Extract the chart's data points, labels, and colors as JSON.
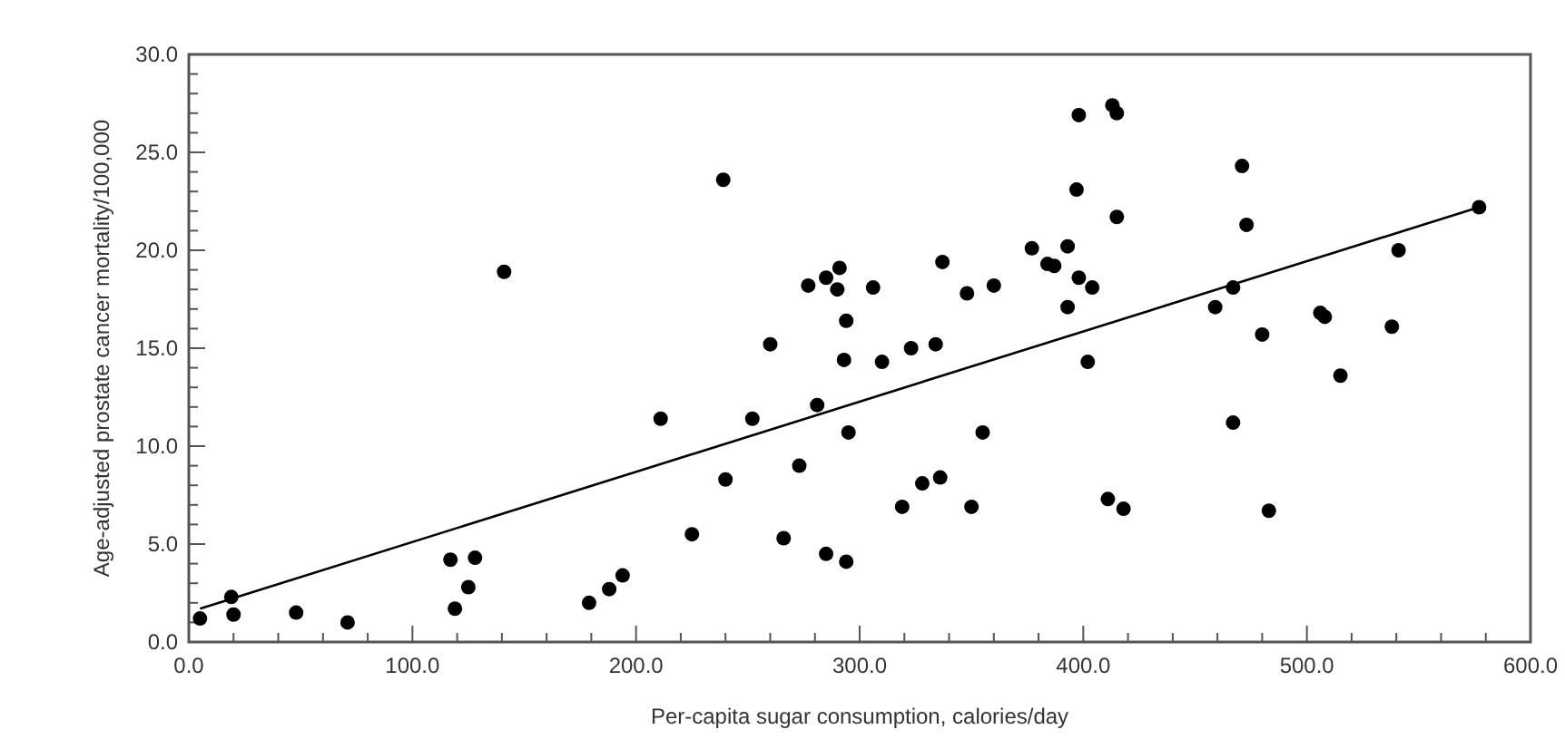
{
  "chart_data": {
    "type": "scatter",
    "xlabel": "Per-capita sugar consumption, calories/day",
    "ylabel": "Age-adjusted prostate cancer mortality/100,000",
    "xlim": [
      0,
      600
    ],
    "ylim": [
      0,
      30
    ],
    "xticks": [
      {
        "value": 0,
        "label": "0.0"
      },
      {
        "value": 20,
        "label": null
      },
      {
        "value": 40,
        "label": null
      },
      {
        "value": 60,
        "label": null
      },
      {
        "value": 80,
        "label": null
      },
      {
        "value": 100,
        "label": "100.0"
      },
      {
        "value": 120,
        "label": null
      },
      {
        "value": 140,
        "label": null
      },
      {
        "value": 160,
        "label": null
      },
      {
        "value": 180,
        "label": null
      },
      {
        "value": 200,
        "label": "200.0"
      },
      {
        "value": 220,
        "label": null
      },
      {
        "value": 240,
        "label": null
      },
      {
        "value": 260,
        "label": null
      },
      {
        "value": 280,
        "label": null
      },
      {
        "value": 300,
        "label": "300.0"
      },
      {
        "value": 320,
        "label": null
      },
      {
        "value": 340,
        "label": null
      },
      {
        "value": 360,
        "label": null
      },
      {
        "value": 380,
        "label": null
      },
      {
        "value": 400,
        "label": "400.0"
      },
      {
        "value": 420,
        "label": null
      },
      {
        "value": 440,
        "label": null
      },
      {
        "value": 460,
        "label": null
      },
      {
        "value": 480,
        "label": null
      },
      {
        "value": 500,
        "label": "500.0"
      },
      {
        "value": 520,
        "label": null
      },
      {
        "value": 540,
        "label": null
      },
      {
        "value": 560,
        "label": null
      },
      {
        "value": 580,
        "label": null
      },
      {
        "value": 600,
        "label": "600.0"
      }
    ],
    "yticks": [
      {
        "value": 0,
        "label": "0.0"
      },
      {
        "value": 1,
        "label": null
      },
      {
        "value": 2,
        "label": null
      },
      {
        "value": 3,
        "label": null
      },
      {
        "value": 4,
        "label": null
      },
      {
        "value": 5,
        "label": "5.0"
      },
      {
        "value": 6,
        "label": null
      },
      {
        "value": 7,
        "label": null
      },
      {
        "value": 8,
        "label": null
      },
      {
        "value": 9,
        "label": null
      },
      {
        "value": 10,
        "label": "10.0"
      },
      {
        "value": 11,
        "label": null
      },
      {
        "value": 12,
        "label": null
      },
      {
        "value": 13,
        "label": null
      },
      {
        "value": 14,
        "label": null
      },
      {
        "value": 15,
        "label": "15.0"
      },
      {
        "value": 16,
        "label": null
      },
      {
        "value": 17,
        "label": null
      },
      {
        "value": 18,
        "label": null
      },
      {
        "value": 19,
        "label": null
      },
      {
        "value": 20,
        "label": "20.0"
      },
      {
        "value": 21,
        "label": null
      },
      {
        "value": 22,
        "label": null
      },
      {
        "value": 23,
        "label": null
      },
      {
        "value": 24,
        "label": null
      },
      {
        "value": 25,
        "label": "25.0"
      },
      {
        "value": 26,
        "label": null
      },
      {
        "value": 27,
        "label": null
      },
      {
        "value": 28,
        "label": null
      },
      {
        "value": 29,
        "label": null
      },
      {
        "value": 30,
        "label": "30.0"
      }
    ],
    "grid": false,
    "marker": "circle",
    "series": [
      {
        "color": "#000000",
        "x": [
          5,
          19,
          20,
          48,
          71,
          117,
          119,
          125,
          128,
          141,
          179,
          188,
          194,
          211,
          225,
          239,
          240,
          252,
          260,
          266,
          273,
          277,
          281,
          285,
          285,
          291,
          290,
          294,
          293,
          295,
          294,
          306,
          310,
          319,
          323,
          328,
          334,
          336,
          337,
          348,
          350,
          355,
          360,
          377,
          384,
          387,
          393,
          393,
          398,
          397,
          398,
          404,
          402,
          413,
          415,
          415,
          411,
          418,
          459,
          467,
          467,
          471,
          473,
          480,
          483,
          506,
          508,
          515,
          538,
          541,
          577
        ],
        "values": [
          1.2,
          2.3,
          1.4,
          1.5,
          1.0,
          4.2,
          1.7,
          2.8,
          4.3,
          18.9,
          2.0,
          2.7,
          3.4,
          11.4,
          5.5,
          23.6,
          8.3,
          11.4,
          15.2,
          5.3,
          9.0,
          18.2,
          12.1,
          4.5,
          18.6,
          19.1,
          18.0,
          16.4,
          14.4,
          10.7,
          4.1,
          18.1,
          14.3,
          6.9,
          15.0,
          8.1,
          15.2,
          8.4,
          19.4,
          17.8,
          6.9,
          10.7,
          18.2,
          20.1,
          19.3,
          19.2,
          20.2,
          17.1,
          26.9,
          23.1,
          18.6,
          18.1,
          14.3,
          27.4,
          27.0,
          21.7,
          7.3,
          6.8,
          17.1,
          18.1,
          11.2,
          24.3,
          21.3,
          15.7,
          6.7,
          16.8,
          16.6,
          13.6,
          16.1,
          20.0,
          22.2
        ]
      },
      {
        "type": "line",
        "color": "#000000",
        "marker": "none",
        "line_style": "solid",
        "x": [
          5,
          577
        ],
        "values": [
          1.7,
          22.2
        ]
      }
    ]
  }
}
